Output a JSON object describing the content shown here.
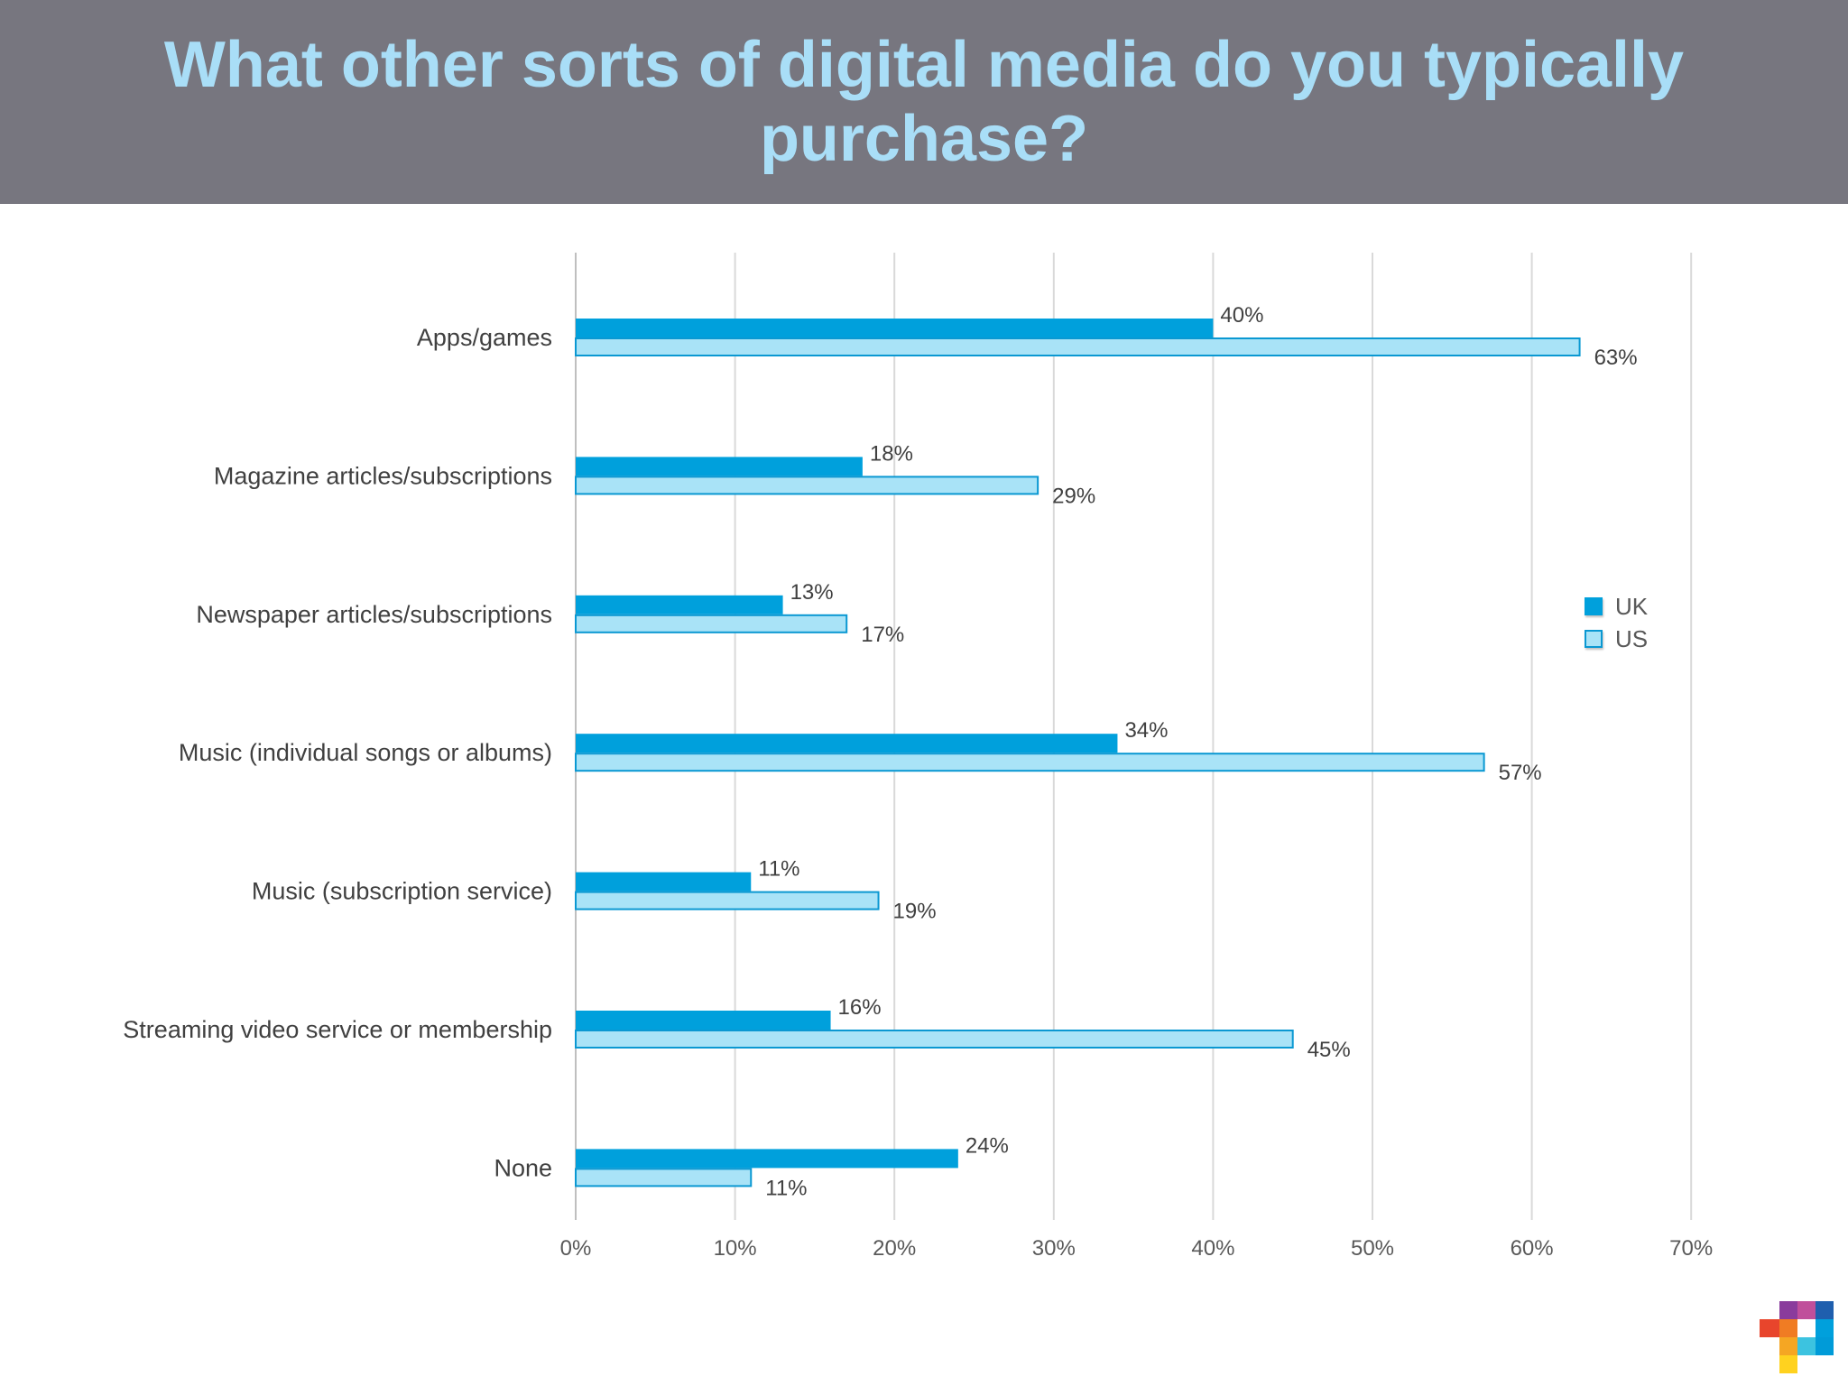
{
  "slide": {
    "title": "What other sorts of digital media do you typically purchase?"
  },
  "legend": {
    "items": [
      {
        "label": "UK",
        "color": "#00a0dc"
      },
      {
        "label": "US",
        "color": "#a9e3f7"
      }
    ]
  },
  "chart_data": {
    "type": "bar",
    "orientation": "horizontal",
    "title": "What other sorts of digital media do you typically purchase?",
    "categories": [
      "Apps/games",
      "Magazine articles/subscriptions",
      "Newspaper articles/subscriptions",
      "Music (individual songs or albums)",
      "Music (subscription service)",
      "Streaming video service or membership",
      "None"
    ],
    "series": [
      {
        "name": "UK",
        "values": [
          40,
          18,
          13,
          34,
          11,
          16,
          24
        ],
        "labels": [
          "40%",
          "18%",
          "13%",
          "34%",
          "11%",
          "16%",
          "24%"
        ],
        "color": "#00a0dc"
      },
      {
        "name": "US",
        "values": [
          63,
          29,
          17,
          57,
          19,
          45,
          11
        ],
        "labels": [
          "63%",
          "29%",
          "17%",
          "57%",
          "19%",
          "45%",
          "11%"
        ],
        "color": "#a9e3f7",
        "border": "#0a98d2"
      }
    ],
    "xlim": [
      0,
      70
    ],
    "xticks": [
      "0%",
      "10%",
      "20%",
      "30%",
      "40%",
      "50%",
      "60%",
      "70%"
    ],
    "grid": true,
    "legend_position": "right"
  },
  "logo": {
    "name": "brand-logo"
  }
}
